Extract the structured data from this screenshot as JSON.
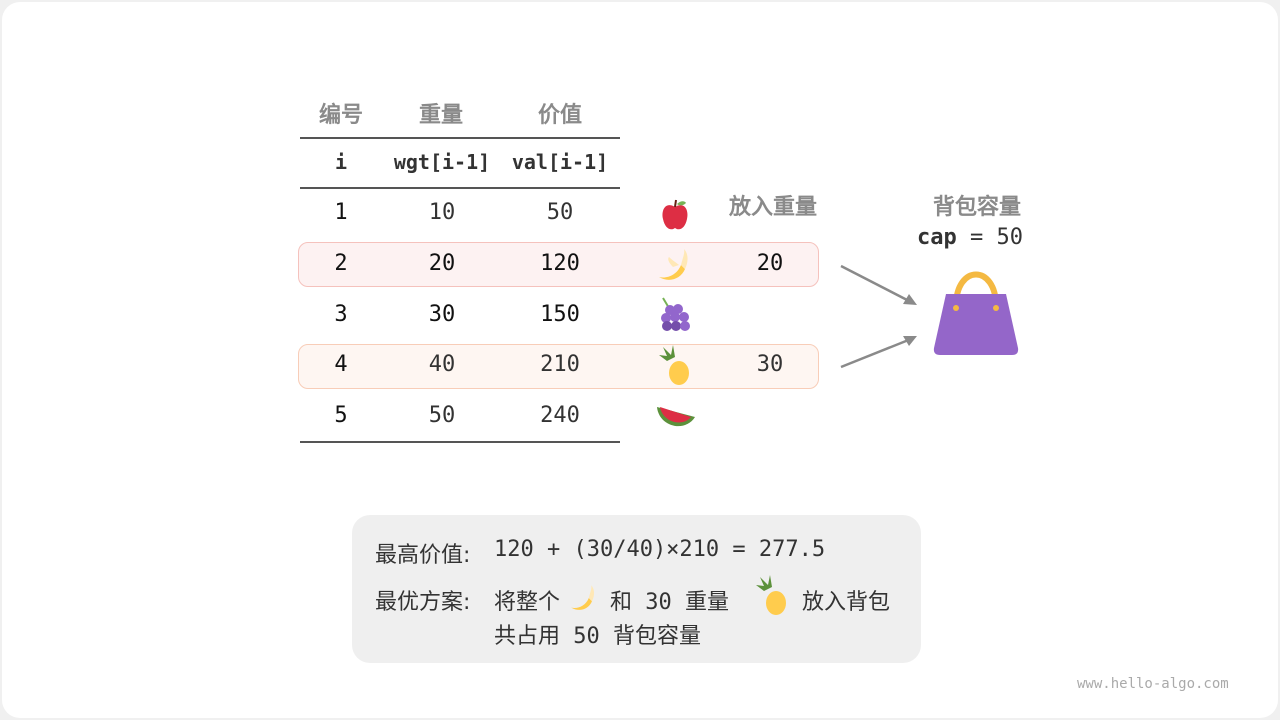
{
  "headers": {
    "id": "编号",
    "weight": "重量",
    "value": "价值",
    "put_weight": "放入重量"
  },
  "subheaders": {
    "id": "i",
    "weight": "wgt[i-1]",
    "value": "val[i-1]"
  },
  "rows": [
    {
      "i": "1",
      "wgt": "10",
      "val": "50",
      "fruit": "apple-icon",
      "put": ""
    },
    {
      "i": "2",
      "wgt": "20",
      "val": "120",
      "fruit": "banana-icon",
      "put": "20"
    },
    {
      "i": "3",
      "wgt": "30",
      "val": "150",
      "fruit": "grapes-icon",
      "put": ""
    },
    {
      "i": "4",
      "wgt": "40",
      "val": "210",
      "fruit": "pineapple-icon",
      "put": "30"
    },
    {
      "i": "5",
      "wgt": "50",
      "val": "240",
      "fruit": "watermelon-icon",
      "put": ""
    }
  ],
  "bag": {
    "title": "背包容量",
    "cap_label": "cap",
    "cap_value": " = 50",
    "icon": "handbag-icon",
    "color": "#9466c9"
  },
  "summary": {
    "max_label": "最高价值:",
    "max_formula": "120 + (30/40)×210 = 277.5",
    "plan_label": "最优方案:",
    "plan_a": "将整个",
    "plan_b": "和 30 重量",
    "plan_c": "放入背包",
    "plan_line2": "共占用 50 背包容量"
  },
  "colors": {
    "highlight_row2": "#fdf2f2",
    "highlight_row4": "#fef6f2",
    "highlight_border": "#f7c6bf"
  },
  "watermark": "www.hello-algo.com"
}
